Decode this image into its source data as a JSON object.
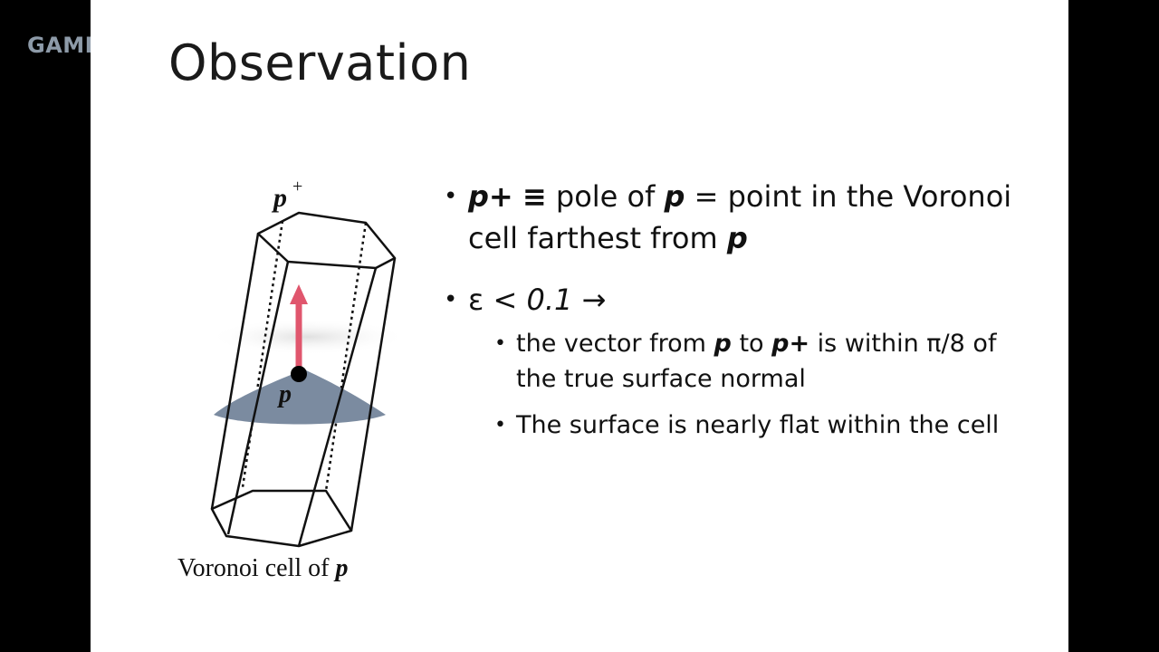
{
  "watermark": "GAME",
  "slide": {
    "title": "Observation",
    "figure": {
      "top_label": "p",
      "top_superscript": "+",
      "point_label": "p",
      "caption_prefix": "Voronoi cell of ",
      "caption_var": "p"
    },
    "bullets": {
      "b1": {
        "var1": "p+",
        "sym": "≡",
        "text1": " pole of ",
        "var2": "p",
        "text2": " = point in the Voronoi cell farthest from ",
        "var3": "p"
      },
      "b2": {
        "text": "ε < ",
        "val": "0.1",
        "arrow": " →"
      },
      "b3": {
        "text1": "the vector from ",
        "var1": "p",
        "text2": " to ",
        "var2": "p+",
        "text3": " is within π/8 of the true surface normal"
      },
      "b4": {
        "text": "The surface is nearly flat within the cell"
      }
    },
    "colors": {
      "arrow": "#e0566d",
      "surface": "#7b8ba0"
    }
  }
}
